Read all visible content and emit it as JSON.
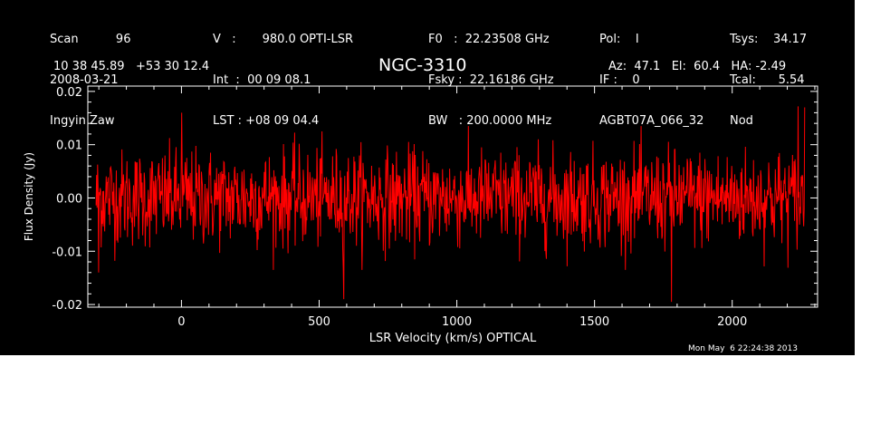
{
  "header": {
    "col1": [
      "Scan          96",
      "2008-03-21",
      "Ingyin Zaw"
    ],
    "col2": [
      "V   :       980.0 OPTI-LSR",
      "Int  :  00 09 08.1",
      "LST : +08 09 04.4"
    ],
    "col3": [
      "F0   :  22.23508 GHz",
      "Fsky :  22.16186 GHz",
      "BW   : 200.0000 MHz"
    ],
    "col4": [
      "Pol:    I",
      "IF :    0",
      "AGBT07A_066_32"
    ],
    "col5": [
      "Tsys:    34.17",
      "Tcal:      5.54",
      "Nod"
    ],
    "coords": "10 38 45.89   +53 30 12.4",
    "source": "NGC-3310",
    "pointing": "Az:  47.1   El:  60.4   HA: -2.49"
  },
  "timestamp": "Mon May  6 22:24:38 2013",
  "chart_data": {
    "type": "line",
    "xlabel": "LSR Velocity (km/s) OPTICAL",
    "ylabel": "Flux Density (Jy)",
    "xlim": [
      -340,
      2310
    ],
    "ylim": [
      -0.0205,
      0.021
    ],
    "xticks": [
      0,
      500,
      1000,
      1500,
      2000
    ],
    "xtick_labels": [
      "0",
      "500",
      "1000",
      "1500",
      "2000"
    ],
    "yticks": [
      -0.02,
      -0.01,
      0.0,
      0.01,
      0.02
    ],
    "ytick_labels": [
      "-0.02",
      "-0.01",
      "0.00",
      "0.01",
      "0.02"
    ],
    "series": [
      {
        "color": "#ff0000",
        "x_start": -310,
        "x_end": 2265,
        "noise_sigma": 0.0045,
        "mean": 0.0,
        "note_peaks": [
          {
            "x": -300,
            "y": -0.014
          },
          {
            "x": 0,
            "y": 0.016
          },
          {
            "x": 590,
            "y": -0.019
          },
          {
            "x": 1780,
            "y": -0.0195
          },
          {
            "x": 2240,
            "y": 0.0172
          },
          {
            "x": 2265,
            "y": 0.017
          }
        ]
      }
    ]
  }
}
